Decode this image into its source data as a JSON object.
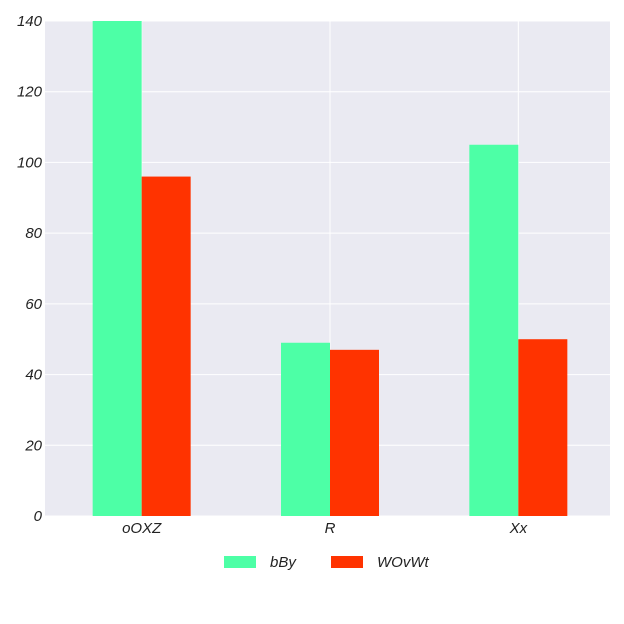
{
  "chart_data": {
    "type": "bar",
    "categories": [
      "oOXZ",
      "R",
      "Xx"
    ],
    "series": [
      {
        "name": "bBy",
        "values": [
          140,
          49,
          105
        ],
        "color": "#4dffa6"
      },
      {
        "name": "WOvWt",
        "values": [
          96,
          47,
          50
        ],
        "color": "#ff3300"
      }
    ],
    "ylim": [
      0,
      140
    ],
    "yticks": [
      0,
      20,
      40,
      60,
      80,
      100,
      120,
      140
    ],
    "xlabel": "",
    "ylabel": "",
    "grid": true,
    "legend_position": "bottom-center",
    "background": "#eaeaf2"
  }
}
